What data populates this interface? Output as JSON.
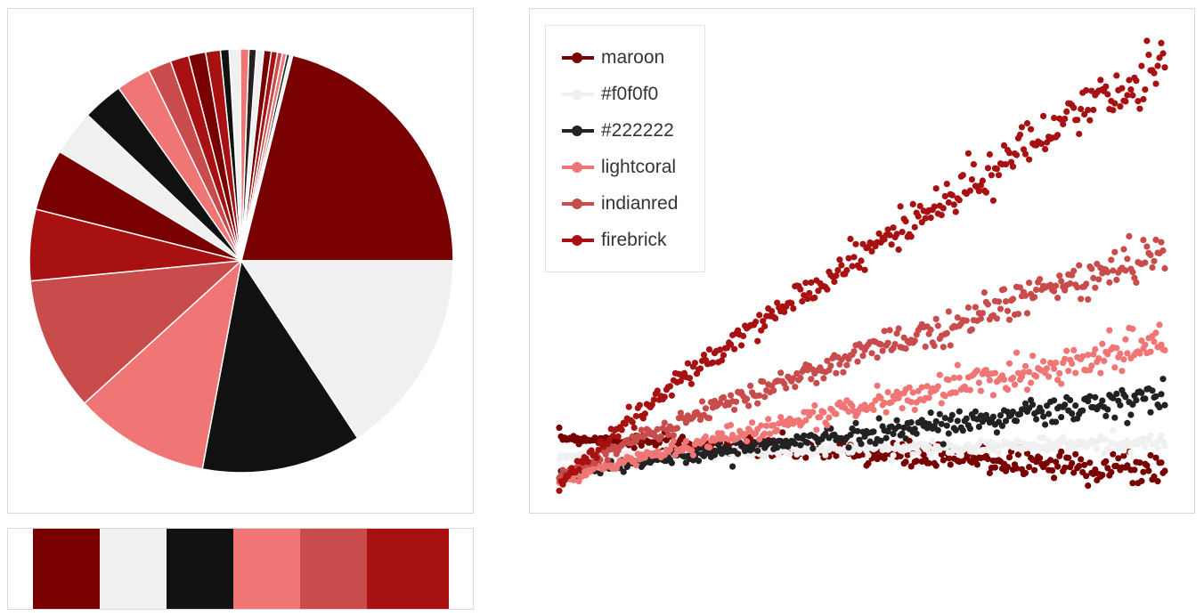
{
  "chart_data": [
    {
      "type": "pie",
      "slices": [
        {
          "value": 22.5,
          "color": "#780000"
        },
        {
          "value": 0.25,
          "color": "#f0f0f0"
        },
        {
          "value": 0.25,
          "color": "#222222"
        },
        {
          "value": 0.35,
          "color": "#f07575"
        },
        {
          "value": 0.4,
          "color": "#c84c4c"
        },
        {
          "value": 0.5,
          "color": "#a81111"
        },
        {
          "value": 0.6,
          "color": "#780000"
        },
        {
          "value": 0.6,
          "color": "#f0f0f0"
        },
        {
          "value": 0.6,
          "color": "#222222"
        },
        {
          "value": 0.7,
          "color": "#f07575"
        },
        {
          "value": 0.9,
          "color": "#f0f0f0"
        },
        {
          "value": 0.7,
          "color": "#111111"
        },
        {
          "value": 1.2,
          "color": "#a81111"
        },
        {
          "value": 1.4,
          "color": "#780000"
        },
        {
          "value": 1.5,
          "color": "#a81111"
        },
        {
          "value": 1.9,
          "color": "#c84c4c"
        },
        {
          "value": 2.8,
          "color": "#f07575"
        },
        {
          "value": 3.3,
          "color": "#111111"
        },
        {
          "value": 3.7,
          "color": "#f0f0f0"
        },
        {
          "value": 5.0,
          "color": "#780000"
        },
        {
          "value": 5.8,
          "color": "#a81111"
        },
        {
          "value": 10.9,
          "color": "#c84c4c"
        },
        {
          "value": 11.0,
          "color": "#f07575"
        },
        {
          "value": 13.0,
          "color": "#111111"
        },
        {
          "value": 16.8,
          "color": "#f0f0f0"
        }
      ]
    },
    {
      "type": "scatter",
      "legend_position": "top-left",
      "series": [
        {
          "name": "maroon",
          "color": "#780000",
          "start": 1.6,
          "end": 0.6,
          "spread": 0.22
        },
        {
          "name": "#f0f0f0",
          "color": "#f0f0f0",
          "start": 1.0,
          "end": 1.45,
          "spread": 0.1
        },
        {
          "name": "#222222",
          "color": "#222222",
          "start": 0.4,
          "end": 2.8,
          "spread": 0.2
        },
        {
          "name": "lightcoral",
          "color": "#f07575",
          "start": 0.2,
          "end": 4.5,
          "spread": 0.22
        },
        {
          "name": "indianred",
          "color": "#c84c4c",
          "start": 0.3,
          "end": 7.3,
          "spread": 0.25
        },
        {
          "name": "firebrick",
          "color": "#a81111",
          "start": 0.0,
          "end": 13.1,
          "spread": 0.32
        }
      ]
    }
  ],
  "swatches": [
    "#780000",
    "#f0f0f0",
    "#111111",
    "#f07575",
    "#c84c4c",
    "#a81111"
  ]
}
